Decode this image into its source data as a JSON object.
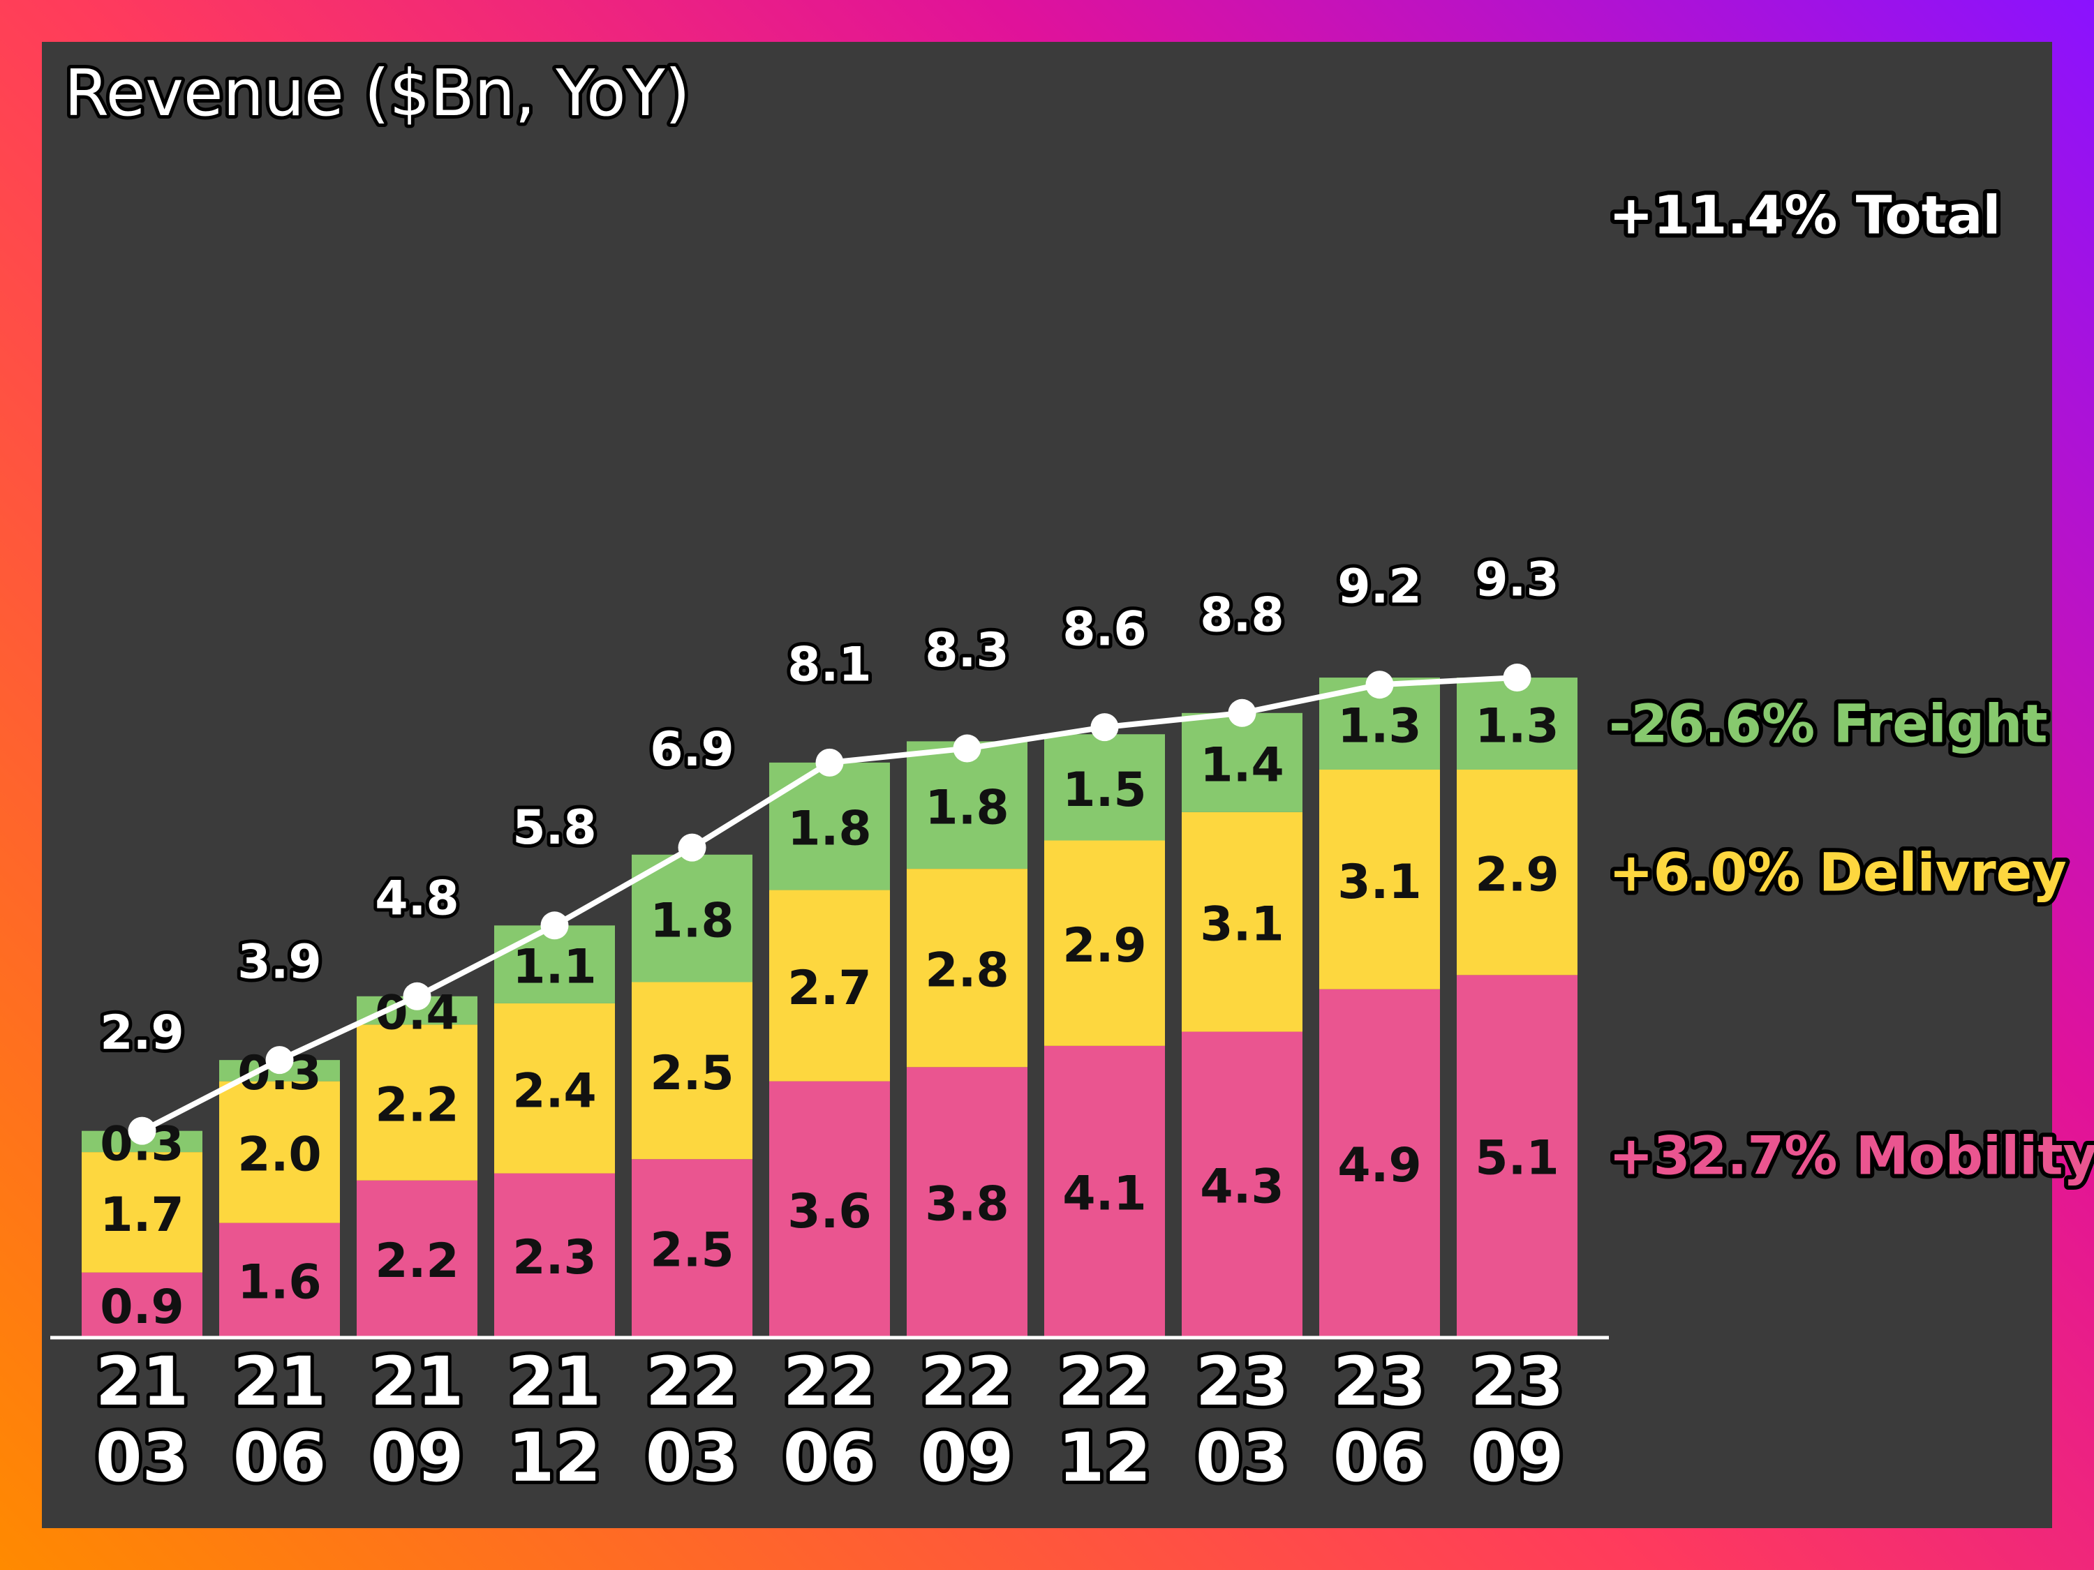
{
  "colors": {
    "mobility": "#ea5590",
    "delivery": "#fdd73f",
    "freight": "#87c96e",
    "total": "#ffffff",
    "panel": "#3b3b3b"
  },
  "chart_data": {
    "type": "bar",
    "stacked": true,
    "title": "Revenue ($Bn, YoY)",
    "categories": [
      [
        "21",
        "03"
      ],
      [
        "21",
        "06"
      ],
      [
        "21",
        "09"
      ],
      [
        "21",
        "12"
      ],
      [
        "22",
        "03"
      ],
      [
        "22",
        "06"
      ],
      [
        "22",
        "09"
      ],
      [
        "22",
        "12"
      ],
      [
        "23",
        "03"
      ],
      [
        "23",
        "06"
      ],
      [
        "23",
        "09"
      ]
    ],
    "series": [
      {
        "key": "mobility",
        "values": [
          0.9,
          1.6,
          2.2,
          2.3,
          2.5,
          3.6,
          3.8,
          4.1,
          4.3,
          4.9,
          5.1
        ],
        "labels": [
          "0.9",
          "1.6",
          "2.2",
          "2.3",
          "2.5",
          "3.6",
          "3.8",
          "4.1",
          "4.3",
          "4.9",
          "5.1"
        ]
      },
      {
        "key": "delivery",
        "values": [
          1.7,
          2.0,
          2.2,
          2.4,
          2.5,
          2.7,
          2.8,
          2.9,
          3.1,
          3.1,
          2.9
        ],
        "labels": [
          "1.7",
          "2.0",
          "2.2",
          "2.4",
          "2.5",
          "2.7",
          "2.8",
          "2.9",
          "3.1",
          "3.1",
          "2.9"
        ]
      },
      {
        "key": "freight",
        "values": [
          0.3,
          0.3,
          0.4,
          1.1,
          1.8,
          1.8,
          1.8,
          1.5,
          1.4,
          1.3,
          1.3
        ],
        "labels": [
          "0.3",
          "0.3",
          "0.4",
          "1.1",
          "1.8",
          "1.8",
          "1.8",
          "1.5",
          "1.4",
          "1.3",
          "1.3"
        ]
      }
    ],
    "total": {
      "type": "line",
      "values": [
        2.9,
        3.9,
        4.8,
        5.8,
        6.9,
        8.1,
        8.3,
        8.6,
        8.8,
        9.2,
        9.3
      ],
      "labels": [
        "2.9",
        "3.9",
        "4.8",
        "5.8",
        "6.9",
        "8.1",
        "8.3",
        "8.6",
        "8.8",
        "9.2",
        "9.3"
      ]
    },
    "ylim": [
      0,
      10
    ],
    "grid": false,
    "legend_position": "right",
    "legend": [
      {
        "series": "total",
        "text": "+11.4% Total"
      },
      {
        "series": "freight",
        "text": "-26.6% Freight"
      },
      {
        "series": "delivery",
        "text": "+6.0% Delivrey"
      },
      {
        "series": "mobility",
        "text": "+32.7% Mobility"
      }
    ]
  }
}
